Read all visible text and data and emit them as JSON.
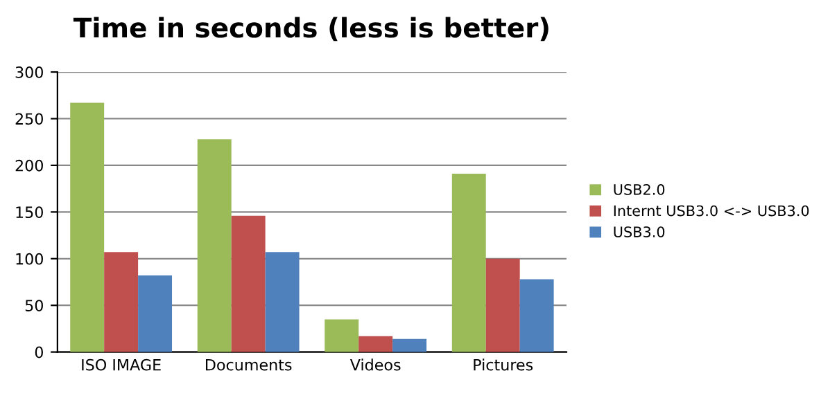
{
  "chart_data": {
    "type": "bar",
    "title": "Time in seconds (less is better)",
    "categories": [
      "ISO IMAGE",
      "Documents",
      "Videos",
      "Pictures"
    ],
    "series": [
      {
        "name": "USB2.0",
        "color": "#9bbb59",
        "values": [
          267,
          228,
          35,
          191
        ]
      },
      {
        "name": "Internt USB3.0 <-> USB3.0",
        "color": "#c0504d",
        "values": [
          107,
          146,
          17,
          100
        ]
      },
      {
        "name": "USB3.0",
        "color": "#4f81bd",
        "values": [
          82,
          107,
          14,
          78
        ]
      }
    ],
    "ylim": [
      0,
      300
    ],
    "yticks": [
      0,
      50,
      100,
      150,
      200,
      250,
      300
    ],
    "grid": "y",
    "legend": "right"
  }
}
